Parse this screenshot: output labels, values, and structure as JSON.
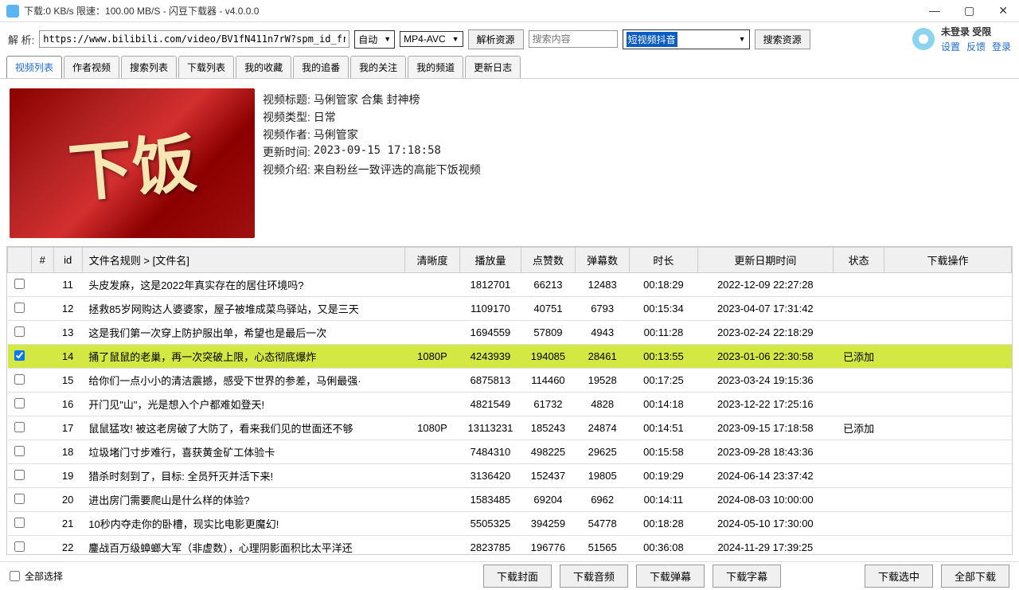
{
  "titlebar": {
    "text": "下载:0 KB/s  限速：100.00 MB/S  - 闪豆下载器 - v4.0.0.0"
  },
  "toolbar": {
    "parse_label": "解 析:",
    "url": "https://www.bilibili.com/video/BV1fN411n7rW?spm_id_fr",
    "auto": "自动",
    "codec": "MP4-AVC",
    "parse_btn": "解析资源",
    "search_placeholder": "搜索内容",
    "source_selected": "短视频抖音",
    "search_btn": "搜索资源"
  },
  "user": {
    "status": "未登录 受限",
    "settings": "设置",
    "feedback": "反馈",
    "login": "登录"
  },
  "tabs": [
    "视频列表",
    "作者视频",
    "搜索列表",
    "下载列表",
    "我的收藏",
    "我的追番",
    "我的关注",
    "我的频道",
    "更新日志"
  ],
  "active_tab": 0,
  "meta": {
    "title_label": "视频标题:",
    "title": "马俐管家 合集 封神榜",
    "type_label": "视频类型:",
    "type": "日常",
    "author_label": "视频作者:",
    "author": "马俐管家",
    "update_label": "更新时间:",
    "update": "2023-09-15 17:18:58",
    "desc_label": "视频介绍:",
    "desc": "来自粉丝一致评选的高能下饭视频"
  },
  "thumbnail_text": "下饭",
  "columns": [
    "#",
    "id",
    "文件名规则  >  [文件名]",
    "清晰度",
    "播放量",
    "点赞数",
    "弹幕数",
    "时长",
    "更新日期时间",
    "状态",
    "下载操作"
  ],
  "rows": [
    {
      "checked": false,
      "id": "11",
      "name": "头皮发麻，这是2022年真实存在的居住环境吗?",
      "res": "",
      "play": "1812701",
      "like": "66213",
      "dm": "12483",
      "dur": "00:18:29",
      "date": "2022-12-09 22:27:28",
      "status": "",
      "selected": false
    },
    {
      "checked": false,
      "id": "12",
      "name": "拯救85岁网购达人婆婆家，屋子被堆成菜鸟驿站，又是三天",
      "res": "",
      "play": "1109170",
      "like": "40751",
      "dm": "6793",
      "dur": "00:15:34",
      "date": "2023-04-07 17:31:42",
      "status": "",
      "selected": false
    },
    {
      "checked": false,
      "id": "13",
      "name": "这是我们第一次穿上防护服出单，希望也是最后一次",
      "res": "",
      "play": "1694559",
      "like": "57809",
      "dm": "4943",
      "dur": "00:11:28",
      "date": "2023-02-24 22:18:29",
      "status": "",
      "selected": false
    },
    {
      "checked": true,
      "id": "14",
      "name": "捅了鼠鼠的老巢，再一次突破上限，心态彻底爆炸",
      "res": "1080P",
      "play": "4243939",
      "like": "194085",
      "dm": "28461",
      "dur": "00:13:55",
      "date": "2023-01-06 22:30:58",
      "status": "已添加",
      "selected": true
    },
    {
      "checked": false,
      "id": "15",
      "name": "给你们一点小小的清洁震撼，感受下世界的参差，马俐最强·",
      "res": "",
      "play": "6875813",
      "like": "114460",
      "dm": "19528",
      "dur": "00:17:25",
      "date": "2023-03-24 19:15:36",
      "status": "",
      "selected": false
    },
    {
      "checked": false,
      "id": "16",
      "name": "开门见\"山\"，光是想入个户都难如登天!",
      "res": "",
      "play": "4821549",
      "like": "61732",
      "dm": "4828",
      "dur": "00:14:18",
      "date": "2023-12-22 17:25:16",
      "status": "",
      "selected": false
    },
    {
      "checked": false,
      "id": "17",
      "name": "鼠鼠猛攻! 被这老房破了大防了，看来我们见的世面还不够",
      "res": "1080P",
      "play": "13113231",
      "like": "185243",
      "dm": "24874",
      "dur": "00:14:51",
      "date": "2023-09-15 17:18:58",
      "status": "已添加",
      "selected": false
    },
    {
      "checked": false,
      "id": "18",
      "name": "垃圾堵门寸步难行，喜获黄金矿工体验卡",
      "res": "",
      "play": "7484310",
      "like": "498225",
      "dm": "29625",
      "dur": "00:15:58",
      "date": "2023-09-28 18:43:36",
      "status": "",
      "selected": false
    },
    {
      "checked": false,
      "id": "19",
      "name": "猎杀时刻到了，目标: 全员歼灭并活下来!",
      "res": "",
      "play": "3136420",
      "like": "152437",
      "dm": "19805",
      "dur": "00:19:29",
      "date": "2024-06-14 23:37:42",
      "status": "",
      "selected": false
    },
    {
      "checked": false,
      "id": "20",
      "name": "进出房门需要爬山是什么样的体验?",
      "res": "",
      "play": "1583485",
      "like": "69204",
      "dm": "6962",
      "dur": "00:14:11",
      "date": "2024-08-03 10:00:00",
      "status": "",
      "selected": false
    },
    {
      "checked": false,
      "id": "21",
      "name": "10秒内夺走你的卧槽，现实比电影更魔幻!",
      "res": "",
      "play": "5505325",
      "like": "394259",
      "dm": "54778",
      "dur": "00:18:28",
      "date": "2024-05-10 17:30:00",
      "status": "",
      "selected": false
    },
    {
      "checked": false,
      "id": "22",
      "name": "鏖战百万级蟑螂大军（非虚数），心理阴影面积比太平洋还",
      "res": "",
      "play": "2823785",
      "like": "196776",
      "dm": "51565",
      "dur": "00:36:08",
      "date": "2024-11-29 17:39:25",
      "status": "",
      "selected": false
    }
  ],
  "bottom": {
    "select_all": "全部选择",
    "dl_cover": "下载封面",
    "dl_audio": "下载音频",
    "dl_danmu": "下载弹幕",
    "dl_subtitle": "下载字幕",
    "dl_selected": "下载选中",
    "dl_all": "全部下载"
  }
}
